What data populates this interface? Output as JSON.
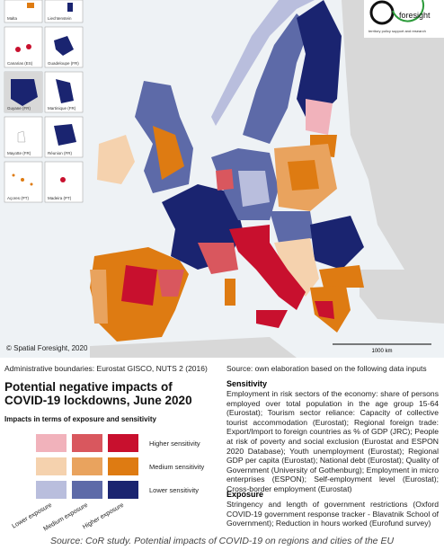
{
  "map": {
    "insets": [
      "Malta",
      "Liechtenstein",
      "Canarias (ES)",
      "Guadeloupe (FR)",
      "Guyane (FR)",
      "Martinique (FR)",
      "Mayotte (FR)",
      "Réunion (FR)",
      "Açores (PT)",
      "Madeira (PT)"
    ],
    "logo": {
      "name": "foresight",
      "tagline": "territory policy support and research"
    },
    "copyright": "© Spatial Foresight, 2020",
    "scale": "1000 km"
  },
  "notes": {
    "boundaries": "Administrative boundaries: Eurostat GISCO, NUTS 2 (2016)",
    "source_intro": "Source: own elaboration based on the following data inputs"
  },
  "title": "Potential negative impacts of COVID-19 lockdowns, June 2020",
  "legend": {
    "title": "Impacts in terms of exposure and sensitivity",
    "rows": [
      "Higher sensitivity",
      "Medium sensitivity",
      "Lower sensitivity"
    ],
    "columns": [
      "Lower exposure",
      "Medium exposure",
      "Higher exposure"
    ]
  },
  "sensitivity": {
    "heading": "Sensitivity",
    "text": "Employment in risk sectors of the economy: share of persons employed over total population in the age group 15-64 (Eurostat); Tourism sector reliance: Capacity of collective tourist accommodation (Eurostat); Regional foreign trade: Export/Import to foreign countries as % of GDP (JRC); People at risk of poverty and social exclusion (Eurostat and ESPON 2020 Database); Youth unemployment (Eurostat); Regional GDP per capita (Eurostat); National debt (Eurostat); Quality of Government (University of Gothenburg); Employment in micro enterprises (ESPON); Self-employment level (Eurostat); Cross-border employment (Eurostat)"
  },
  "exposure": {
    "heading": "Exposure",
    "text": "Stringency and length of government restrictions (Oxford COVID-19 government response tracker - Blavatnik School of Government); Reduction in hours worked (Eurofund survey)"
  },
  "caption": "Source: CoR study. Potential impacts of COVID-19 on regions and cities of the EU"
}
